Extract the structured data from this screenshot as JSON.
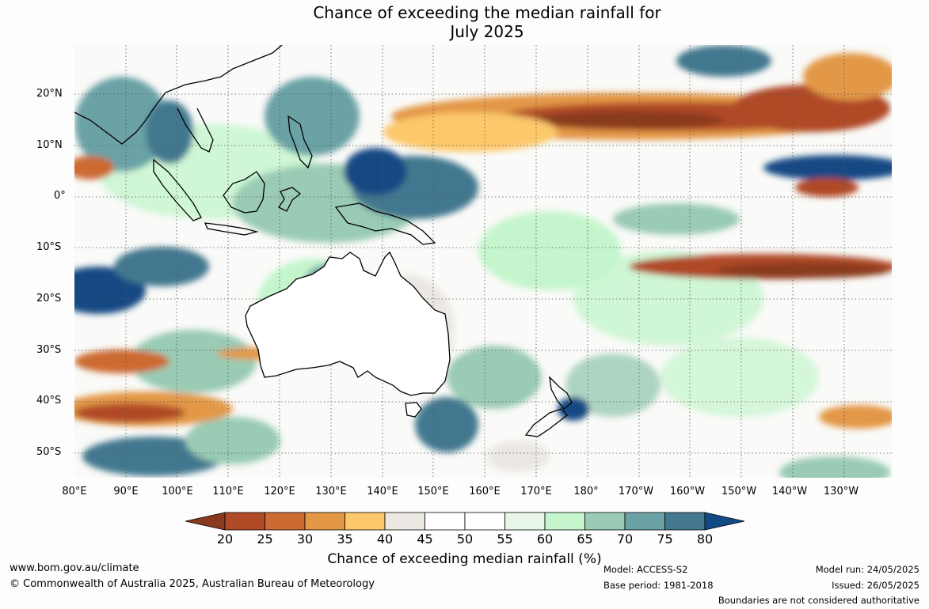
{
  "title_line1": "Chance of exceeding the median rainfall for",
  "title_line2": "July 2025",
  "lat_labels": [
    "20°N",
    "10°N",
    "0°",
    "10°S",
    "20°S",
    "30°S",
    "40°S",
    "50°S"
  ],
  "lon_labels": [
    "80°E",
    "90°E",
    "100°E",
    "110°E",
    "120°E",
    "130°E",
    "140°E",
    "150°E",
    "160°E",
    "170°E",
    "180°",
    "170°W",
    "160°W",
    "150°W",
    "140°W",
    "130°W"
  ],
  "colorbar": {
    "ticks": [
      "20",
      "25",
      "30",
      "35",
      "40",
      "45",
      "50",
      "55",
      "60",
      "65",
      "70",
      "75",
      "80"
    ],
    "colors": [
      "#8a3a1f",
      "#b04a26",
      "#cc6a33",
      "#e39846",
      "#fcc86a",
      "#ebe8e3",
      "#ffffff",
      "#ffffff",
      "#e8f6e8",
      "#c4f5cc",
      "#9acbb4",
      "#6ba2a6",
      "#43788f",
      "#124a84"
    ],
    "label": "Chance of exceeding median rainfall (%)"
  },
  "footer": {
    "website": "www.bom.gov.au/climate",
    "copyright": "© Commonwealth of Australia 2025, Australian Bureau of Meteorology",
    "model": "Model: ACCESS-S2",
    "base_period": "Base period: 1981-2018",
    "model_run": "Model run: 24/05/2025",
    "issued": "Issued: 26/05/2025",
    "disclaimer": "Boundaries are not considered authoritative"
  }
}
